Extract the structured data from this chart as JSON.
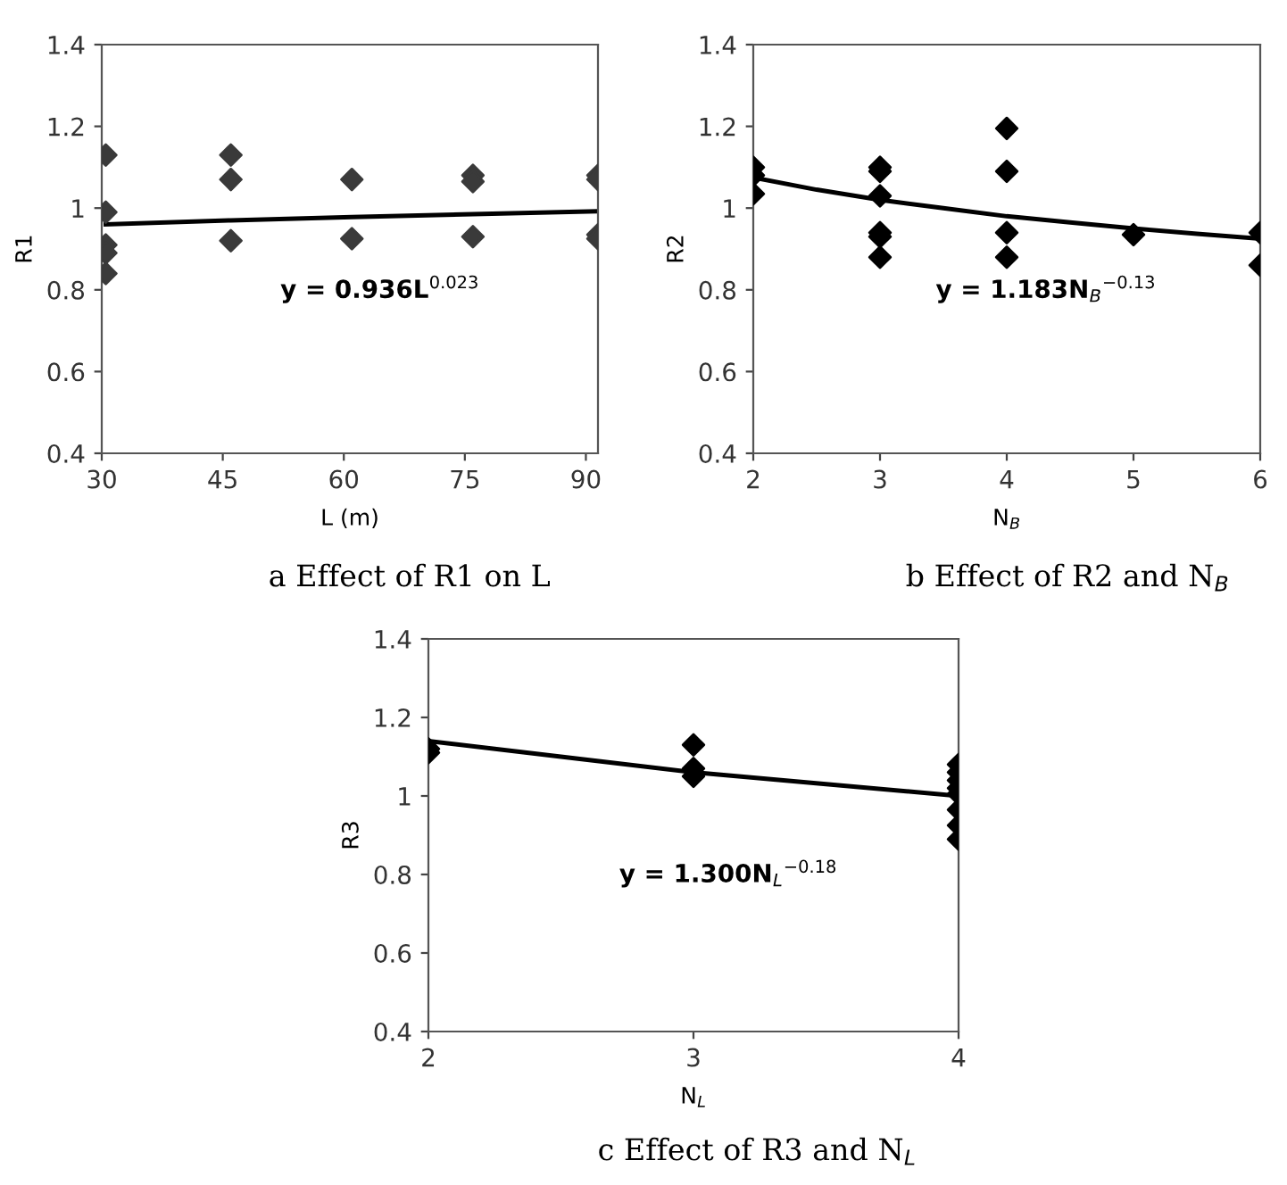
{
  "chart_data": [
    {
      "type": "scatter",
      "title": "a Effect of R1 on L",
      "xlabel": "L (m)",
      "ylabel": "R1",
      "xlim": [
        30,
        91.5
      ],
      "xticks": [
        30,
        45,
        60,
        75,
        90
      ],
      "ylim": [
        0.4,
        1.4
      ],
      "yticks": [
        0.4,
        0.6,
        0.8,
        1,
        1.2,
        1.4
      ],
      "grid": false,
      "legend": false,
      "annotations": [
        "y = 0.936L$^{0.023}$"
      ],
      "series": [
        {
          "color": "#3a3a3a",
          "marker": "diamond",
          "x": [
            30.5,
            30.5,
            30.5,
            30.5,
            30.5,
            46,
            46,
            46,
            61,
            61,
            76,
            76,
            76,
            91.5,
            91.5,
            91.5,
            91.5
          ],
          "values": [
            1.13,
            0.99,
            0.91,
            0.89,
            0.84,
            1.13,
            1.07,
            0.92,
            1.07,
            0.925,
            1.08,
            1.065,
            0.93,
            1.08,
            1.07,
            0.935,
            0.925
          ]
        },
        {
          "type": "line",
          "color": "#000000",
          "x": [
            30.5,
            46,
            61,
            76,
            91.5
          ],
          "values": [
            0.96,
            0.97,
            0.978,
            0.985,
            0.992
          ]
        }
      ]
    },
    {
      "type": "scatter",
      "title": "b Effect of R2 and N$_{B}$",
      "xlabel": "N$_{B}$",
      "ylabel": "R2",
      "xlim": [
        2,
        6
      ],
      "xticks": [
        2,
        3,
        4,
        5,
        6
      ],
      "ylim": [
        0.4,
        1.4
      ],
      "yticks": [
        0.4,
        0.6,
        0.8,
        1,
        1.2,
        1.4
      ],
      "grid": false,
      "legend": false,
      "annotations": [
        "y = 1.183N$_{B}$$^{−0.13}$"
      ],
      "series": [
        {
          "color": "#000000",
          "marker": "diamond",
          "x": [
            2,
            2,
            2,
            3,
            3,
            3,
            3,
            3,
            3,
            4,
            4,
            4,
            4,
            5,
            6,
            6
          ],
          "values": [
            1.1,
            1.08,
            1.035,
            1.1,
            1.09,
            1.03,
            0.94,
            0.93,
            0.88,
            1.195,
            1.09,
            0.94,
            0.88,
            0.935,
            0.94,
            0.86
          ]
        },
        {
          "type": "line",
          "color": "#000000",
          "x": [
            2,
            2.5,
            3,
            3.5,
            4,
            4.5,
            5,
            5.5,
            6
          ],
          "values": [
            1.075,
            1.045,
            1.02,
            1.0,
            0.98,
            0.965,
            0.95,
            0.937,
            0.925
          ]
        }
      ]
    },
    {
      "type": "scatter",
      "title": "c Effect of R3 and N$_{L}$",
      "xlabel": "N$_{L}$",
      "ylabel": "R3",
      "xlim": [
        2,
        4
      ],
      "xticks": [
        2,
        3,
        4
      ],
      "ylim": [
        0.4,
        1.4
      ],
      "yticks": [
        0.4,
        0.6,
        0.8,
        1,
        1.2,
        1.4
      ],
      "grid": false,
      "legend": false,
      "annotations": [
        "y = 1.300N$_{L}$$^{−0.18}$"
      ],
      "series": [
        {
          "color": "#000000",
          "marker": "diamond",
          "x": [
            2,
            2,
            3,
            3,
            3,
            4,
            4,
            4,
            4,
            4,
            4,
            4,
            4
          ],
          "values": [
            1.12,
            1.11,
            1.13,
            1.07,
            1.05,
            1.08,
            1.06,
            1.04,
            1.02,
            1.005,
            0.965,
            0.925,
            0.89
          ]
        },
        {
          "type": "line",
          "color": "#000000",
          "x": [
            2,
            2.5,
            3,
            3.5,
            4
          ],
          "values": [
            1.14,
            1.1,
            1.06,
            1.03,
            1.0
          ]
        }
      ]
    }
  ]
}
